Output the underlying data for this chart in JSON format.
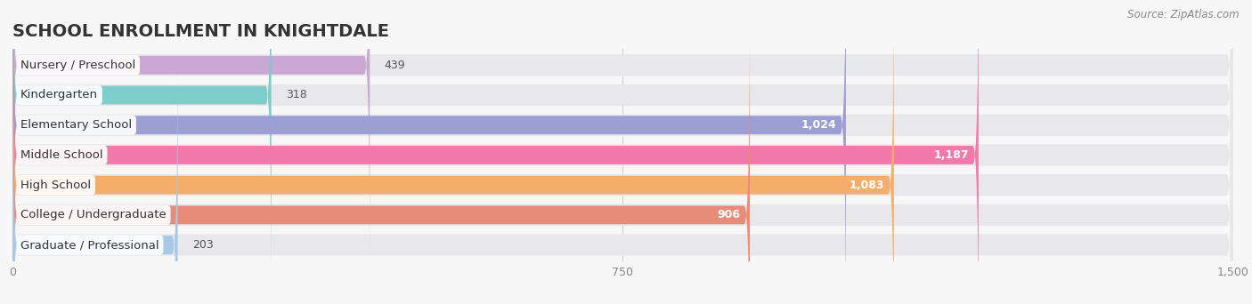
{
  "title": "SCHOOL ENROLLMENT IN KNIGHTDALE",
  "source": "Source: ZipAtlas.com",
  "categories": [
    "Nursery / Preschool",
    "Kindergarten",
    "Elementary School",
    "Middle School",
    "High School",
    "College / Undergraduate",
    "Graduate / Professional"
  ],
  "values": [
    439,
    318,
    1024,
    1187,
    1083,
    906,
    203
  ],
  "bar_colors": [
    "#c9a8d4",
    "#7dceca",
    "#9b9fd4",
    "#f07aaa",
    "#f5ae6a",
    "#e88c7a",
    "#a8c8e8"
  ],
  "bg_color": "#f7f7f7",
  "bar_bg_color": "#e8e8ea",
  "xlim": [
    0,
    1500
  ],
  "xticks": [
    0,
    750,
    1500
  ],
  "title_fontsize": 14,
  "label_fontsize": 9.5,
  "value_fontsize": 9
}
